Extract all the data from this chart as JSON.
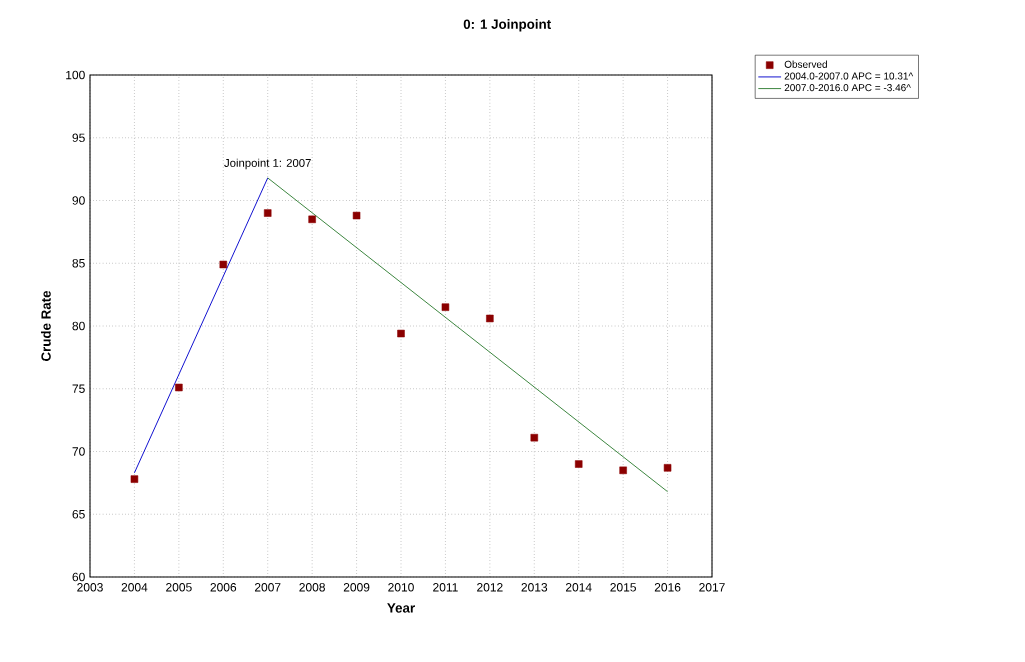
{
  "chart_data": {
    "type": "scatter",
    "title": "0: 1 Joinpoint",
    "xlabel": "Year",
    "ylabel": "Crude Rate",
    "xlim": [
      2003,
      2017
    ],
    "ylim": [
      60,
      100
    ],
    "xticks": [
      2003,
      2004,
      2005,
      2006,
      2007,
      2008,
      2009,
      2010,
      2011,
      2012,
      2013,
      2014,
      2015,
      2016,
      2017
    ],
    "yticks": [
      60,
      65,
      70,
      75,
      80,
      85,
      90,
      95,
      100
    ],
    "grid": true,
    "legend": "top right",
    "annotations": [
      {
        "text": "Joinpoint 1:  2007",
        "x": 2007,
        "y": 91.8
      }
    ],
    "series": [
      {
        "name": "Observed",
        "marker": "square",
        "color": "#8b0000",
        "x": [
          2004,
          2005,
          2006,
          2007,
          2008,
          2009,
          2010,
          2011,
          2012,
          2013,
          2014,
          2015,
          2016
        ],
        "values": [
          67.8,
          75.1,
          84.9,
          89.0,
          88.5,
          88.8,
          79.4,
          81.5,
          80.6,
          71.1,
          69.0,
          68.5,
          68.7
        ]
      },
      {
        "name": "2004.0-2007.0 APC  = 10.31^",
        "type": "line",
        "color": "#0000cc",
        "x": [
          2004,
          2007
        ],
        "values": [
          68.3,
          91.8
        ]
      },
      {
        "name": "2007.0-2016.0 APC  = -3.46^",
        "type": "line",
        "color": "#2e7d32",
        "x": [
          2007,
          2016
        ],
        "values": [
          91.8,
          66.8
        ]
      }
    ]
  }
}
